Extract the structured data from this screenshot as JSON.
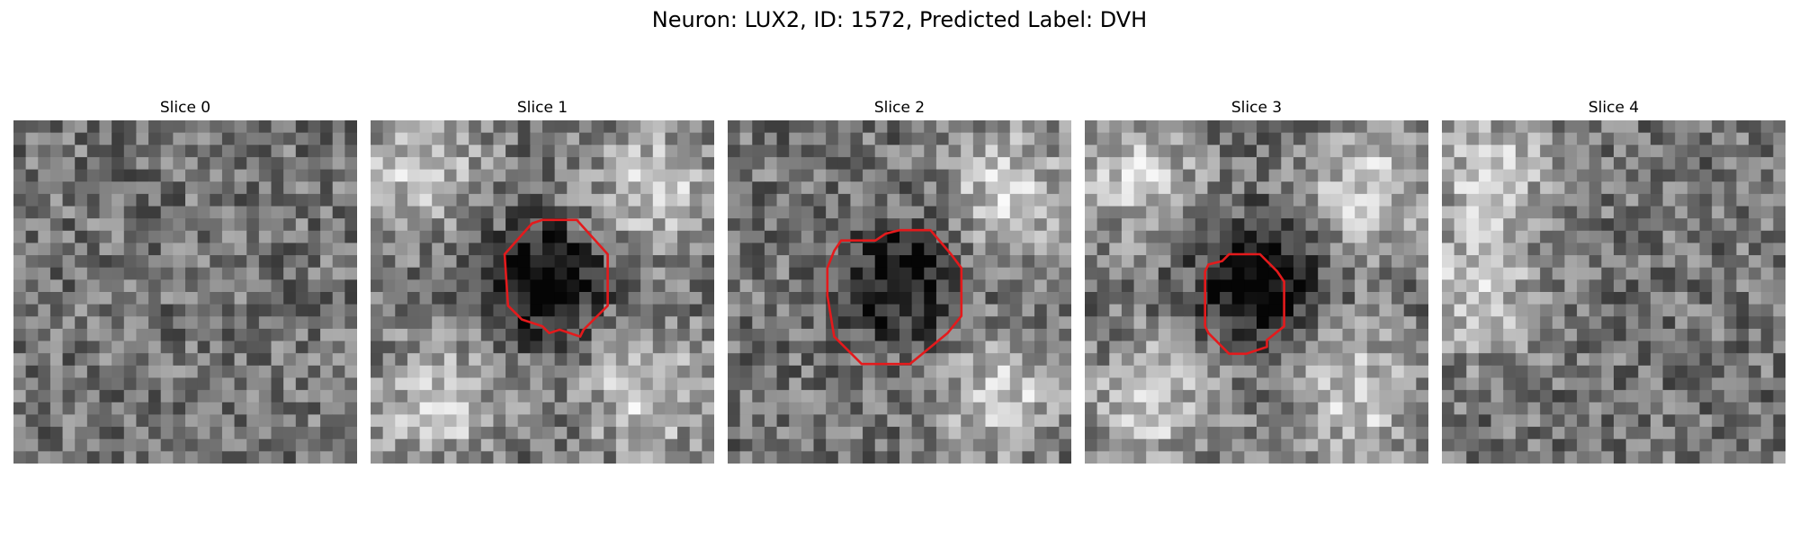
{
  "figure": {
    "title": "Neuron: LUX2, ID: 1572, Predicted Label: DVH"
  },
  "panels": [
    {
      "title": "Slice 0",
      "has_contour": false,
      "seed": 11,
      "center_dark": 0.0,
      "bright_blobs": []
    },
    {
      "title": "Slice 1",
      "has_contour": true,
      "seed": 23,
      "center_dark": 0.55,
      "bright_blobs": [
        "top-right",
        "bottom-left",
        "bottom-right",
        "top-left"
      ]
    },
    {
      "title": "Slice 2",
      "has_contour": true,
      "seed": 37,
      "center_dark": 0.45,
      "bright_blobs": [
        "top-right",
        "bottom-right"
      ]
    },
    {
      "title": "Slice 3",
      "has_contour": true,
      "seed": 49,
      "center_dark": 0.6,
      "bright_blobs": [
        "top-right",
        "bottom-left",
        "bottom-right",
        "top-left"
      ]
    },
    {
      "title": "Slice 4",
      "has_contour": false,
      "seed": 61,
      "center_dark": 0.0,
      "bright_blobs": [
        "top-left",
        "left"
      ]
    }
  ],
  "colors": {
    "contour": "#e41a1c",
    "background": "#ffffff"
  }
}
